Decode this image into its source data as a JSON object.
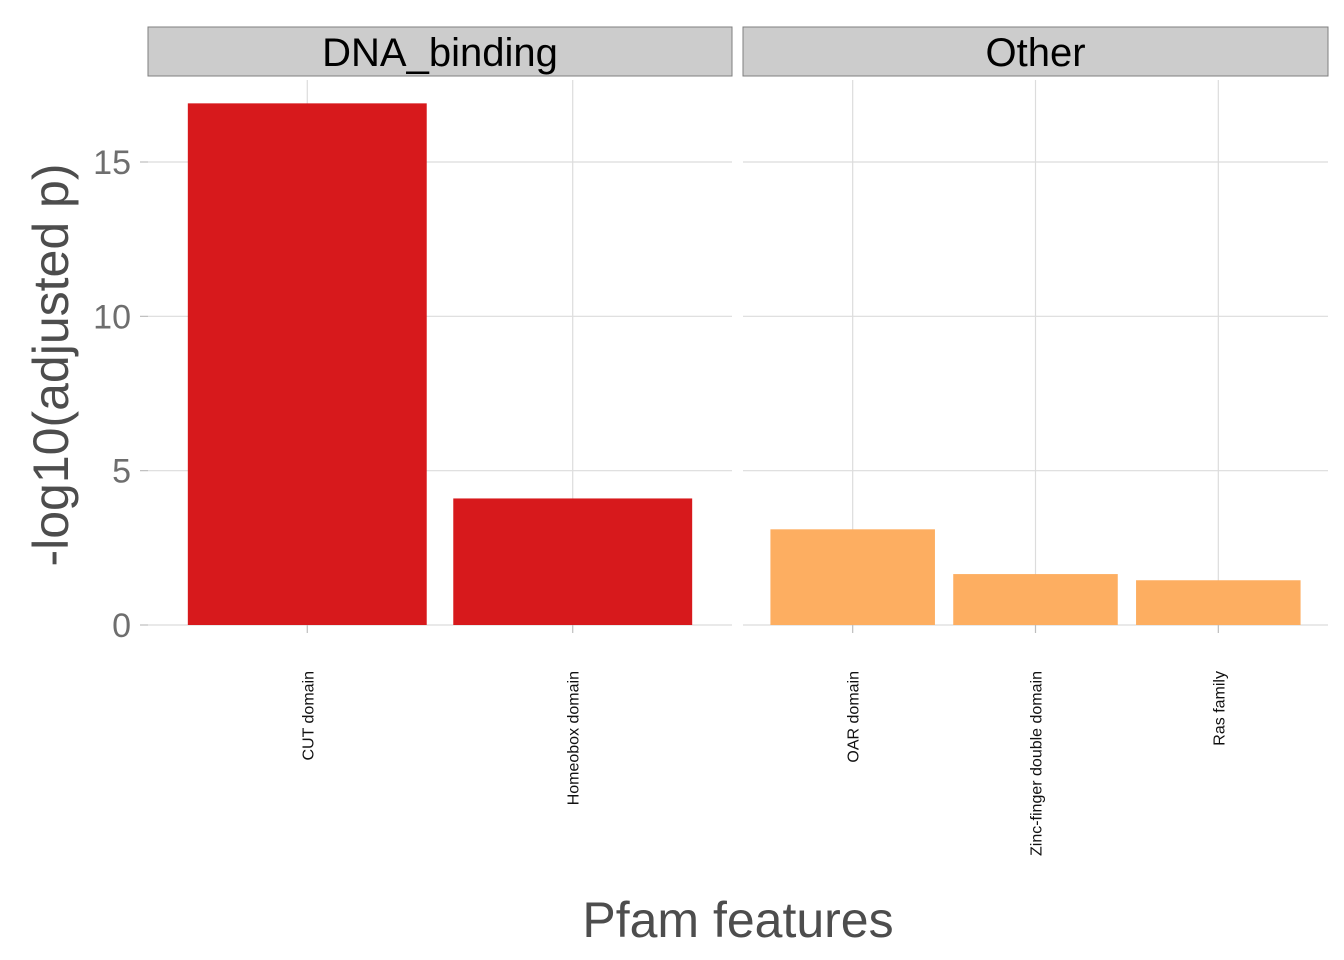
{
  "chart_data": {
    "type": "bar",
    "ylabel": "-log10(adjusted p)",
    "xlabel": "Pfam features",
    "ylim": [
      0,
      17.6
    ],
    "yticks": [
      0,
      5,
      10,
      15
    ],
    "grid": true,
    "legend": "none",
    "facets": [
      {
        "name": "DNA_binding",
        "color": "#d7191c",
        "categories": [
          "CUT domain",
          "Homeobox domain"
        ],
        "values": [
          16.9,
          4.1
        ]
      },
      {
        "name": "Other",
        "color": "#fdae61",
        "categories": [
          "OAR domain",
          "Zinc-finger double domain",
          "Ras family"
        ],
        "values": [
          3.1,
          1.65,
          1.45
        ]
      }
    ]
  }
}
